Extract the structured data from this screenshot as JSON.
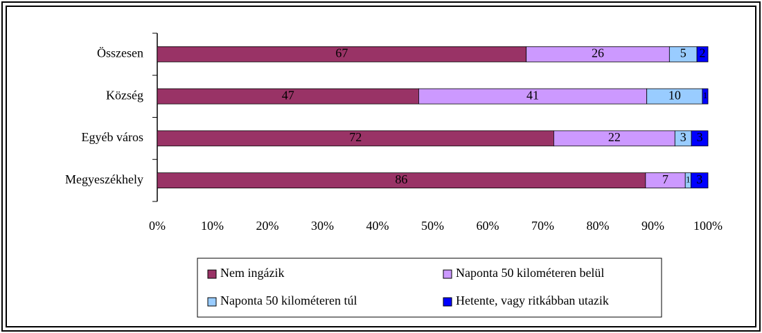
{
  "chart_data": {
    "type": "bar",
    "orientation": "horizontal",
    "stacked": "percent",
    "categories": [
      "Összesen",
      "Község",
      "Egyéb város",
      "Megyeszékhely"
    ],
    "series": [
      {
        "name": "Nem ingázik",
        "color": "#993366",
        "values": [
          67,
          47,
          72,
          86
        ]
      },
      {
        "name": "Naponta 50 kilométeren belül",
        "color": "#CC99FF",
        "values": [
          26,
          41,
          22,
          7
        ]
      },
      {
        "name": "Naponta 50 kilométeren túl",
        "color": "#99CCFF",
        "values": [
          5,
          10,
          3,
          1
        ]
      },
      {
        "name": "Hetente, vagy ritkábban utazik",
        "color": "#0000FF",
        "values": [
          2,
          1,
          3,
          3
        ]
      }
    ],
    "xlim": [
      0,
      100
    ],
    "xticks": [
      {
        "value": 0,
        "label": "0%"
      },
      {
        "value": 10,
        "label": "10%"
      },
      {
        "value": 20,
        "label": "20%"
      },
      {
        "value": 30,
        "label": "30%"
      },
      {
        "value": 40,
        "label": "40%"
      },
      {
        "value": 50,
        "label": "50%"
      },
      {
        "value": 60,
        "label": "60%"
      },
      {
        "value": 70,
        "label": "70%"
      },
      {
        "value": 80,
        "label": "80%"
      },
      {
        "value": 90,
        "label": "90%"
      },
      {
        "value": 100,
        "label": "100%"
      }
    ],
    "legend": "bottom",
    "grid": false
  }
}
